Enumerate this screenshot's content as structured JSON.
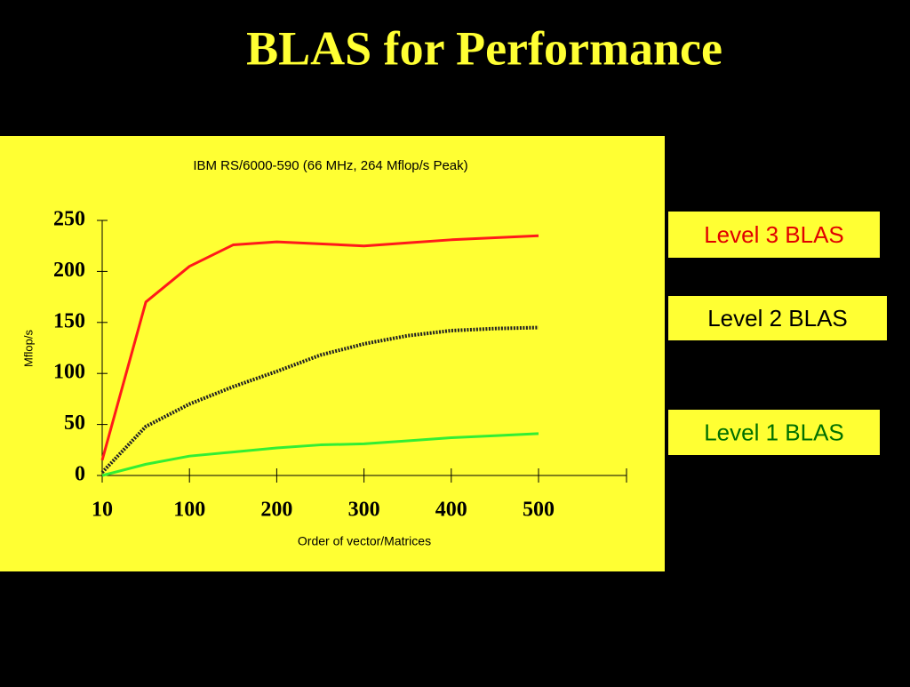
{
  "title": "BLAS for Performance",
  "chart_data": {
    "type": "line",
    "title": "IBM RS/6000-590 (66 MHz, 264 Mflop/s Peak)",
    "x_label": "Order of vector/Matrices",
    "y_label": "Mflop/s",
    "categories": [
      "10",
      null,
      "100",
      null,
      "200",
      null,
      "300",
      null,
      "400",
      null,
      "500"
    ],
    "ylim": [
      0,
      250
    ],
    "yticks": [
      0,
      50,
      100,
      150,
      200,
      250
    ],
    "series": [
      {
        "name": "Level 3 BLAS",
        "color": "#ff1a1a",
        "legend_color": "#e00000",
        "values": [
          15,
          170,
          205,
          226,
          229,
          227,
          225,
          228,
          231,
          233,
          235
        ]
      },
      {
        "name": "Level 2 BLAS",
        "color": "#222222",
        "legend_color": "#000000",
        "values": [
          3,
          48,
          70,
          87,
          102,
          118,
          129,
          137,
          142,
          144,
          145
        ]
      },
      {
        "name": "Level 1 BLAS",
        "color": "#33ee33",
        "legend_color": "#007000",
        "values": [
          0,
          11,
          19,
          23,
          27,
          30,
          31,
          34,
          37,
          39,
          41
        ]
      }
    ]
  }
}
